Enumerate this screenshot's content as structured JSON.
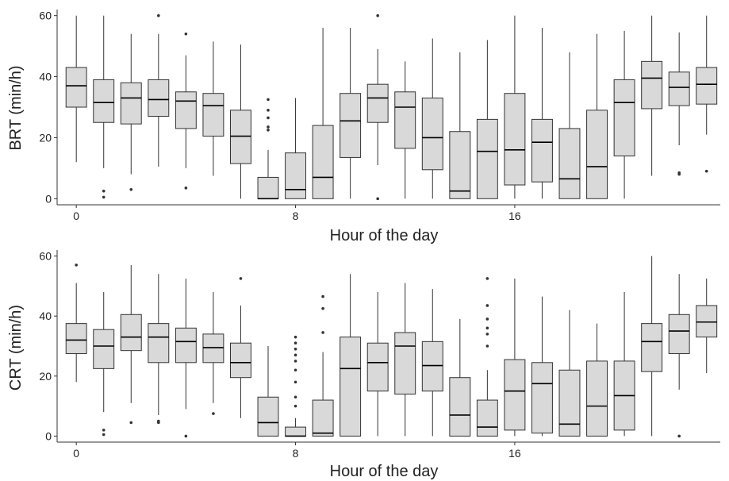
{
  "chart_data": [
    {
      "type": "boxplot",
      "xlabel": "Hour of the day",
      "ylabel": "BRT (min/h)",
      "xticks": [
        0,
        8,
        16
      ],
      "yticks": [
        0,
        20,
        40,
        60
      ],
      "ylim": [
        -2,
        62
      ],
      "xlim": [
        -0.7,
        23.5
      ],
      "grid": false,
      "boxes": [
        {
          "hour": 0,
          "min": 12,
          "q1": 30,
          "median": 37,
          "q3": 43,
          "max": 60,
          "outliers": []
        },
        {
          "hour": 1,
          "min": 10,
          "q1": 25,
          "median": 31.5,
          "q3": 39,
          "max": 60,
          "outliers": [
            0.5,
            2.5
          ]
        },
        {
          "hour": 2,
          "min": 8,
          "q1": 24.5,
          "median": 33,
          "q3": 38,
          "max": 54,
          "outliers": [
            3
          ]
        },
        {
          "hour": 3,
          "min": 10.5,
          "q1": 27,
          "median": 32.5,
          "q3": 39,
          "max": 54,
          "outliers": [
            60
          ]
        },
        {
          "hour": 4,
          "min": 10,
          "q1": 23,
          "median": 32,
          "q3": 35,
          "max": 47,
          "outliers": [
            3.5,
            54
          ]
        },
        {
          "hour": 5,
          "min": 7.5,
          "q1": 20.5,
          "median": 30.5,
          "q3": 34.5,
          "max": 51.5,
          "outliers": []
        },
        {
          "hour": 6,
          "min": 0,
          "q1": 11.5,
          "median": 20.5,
          "q3": 29,
          "max": 50.5,
          "outliers": []
        },
        {
          "hour": 7,
          "min": 0,
          "q1": 0,
          "median": 0,
          "q3": 7,
          "max": 16,
          "outliers": [
            22.5,
            23.5,
            26.5,
            29,
            32.5
          ]
        },
        {
          "hour": 8,
          "min": 0,
          "q1": 0,
          "median": 3,
          "q3": 15,
          "max": 33,
          "outliers": []
        },
        {
          "hour": 9,
          "min": 0,
          "q1": 0,
          "median": 7,
          "q3": 24,
          "max": 56,
          "outliers": []
        },
        {
          "hour": 10,
          "min": 0,
          "q1": 13.5,
          "median": 25.5,
          "q3": 34.5,
          "max": 56,
          "outliers": []
        },
        {
          "hour": 11,
          "min": 11,
          "q1": 25,
          "median": 33,
          "q3": 37.5,
          "max": 49,
          "outliers": [
            0,
            60
          ]
        },
        {
          "hour": 12,
          "min": 0,
          "q1": 16.5,
          "median": 30,
          "q3": 35,
          "max": 45,
          "outliers": []
        },
        {
          "hour": 13,
          "min": 0,
          "q1": 9.5,
          "median": 20,
          "q3": 33,
          "max": 52.5,
          "outliers": []
        },
        {
          "hour": 14,
          "min": 0,
          "q1": 0,
          "median": 2.5,
          "q3": 22,
          "max": 48,
          "outliers": []
        },
        {
          "hour": 15,
          "min": 0,
          "q1": 0,
          "median": 15.5,
          "q3": 26,
          "max": 52,
          "outliers": []
        },
        {
          "hour": 16,
          "min": 0,
          "q1": 4.5,
          "median": 16,
          "q3": 34.5,
          "max": 60,
          "outliers": []
        },
        {
          "hour": 17,
          "min": 0,
          "q1": 5.5,
          "median": 18.5,
          "q3": 26,
          "max": 56,
          "outliers": []
        },
        {
          "hour": 18,
          "min": 0,
          "q1": 0,
          "median": 6.5,
          "q3": 23,
          "max": 48,
          "outliers": []
        },
        {
          "hour": 19,
          "min": 0,
          "q1": 0,
          "median": 10.5,
          "q3": 29,
          "max": 54,
          "outliers": []
        },
        {
          "hour": 20,
          "min": 0,
          "q1": 14,
          "median": 31.5,
          "q3": 39,
          "max": 55,
          "outliers": []
        },
        {
          "hour": 21,
          "min": 7.5,
          "q1": 29.5,
          "median": 39.5,
          "q3": 45,
          "max": 60,
          "outliers": []
        },
        {
          "hour": 22,
          "min": 17.5,
          "q1": 30.5,
          "median": 36.5,
          "q3": 41.5,
          "max": 54.5,
          "outliers": [
            8,
            8.5
          ]
        },
        {
          "hour": 23,
          "min": 21,
          "q1": 31,
          "median": 37.5,
          "q3": 43,
          "max": 60,
          "outliers": [
            9
          ]
        }
      ]
    },
    {
      "type": "boxplot",
      "xlabel": "Hour of the day",
      "ylabel": "CRT (min/h)",
      "xticks": [
        0,
        8,
        16
      ],
      "yticks": [
        0,
        20,
        40,
        60
      ],
      "ylim": [
        -2,
        62
      ],
      "xlim": [
        -0.7,
        23.5
      ],
      "grid": false,
      "boxes": [
        {
          "hour": 0,
          "min": 18,
          "q1": 27.5,
          "median": 32,
          "q3": 37.5,
          "max": 51,
          "outliers": [
            57
          ]
        },
        {
          "hour": 1,
          "min": 8,
          "q1": 22.5,
          "median": 30,
          "q3": 35.5,
          "max": 48,
          "outliers": [
            0.5,
            2
          ]
        },
        {
          "hour": 2,
          "min": 11,
          "q1": 28.5,
          "median": 33,
          "q3": 40.5,
          "max": 57,
          "outliers": [
            4.5
          ]
        },
        {
          "hour": 3,
          "min": 7,
          "q1": 24.5,
          "median": 33,
          "q3": 37.5,
          "max": 54,
          "outliers": [
            4.5,
            5
          ]
        },
        {
          "hour": 4,
          "min": 9,
          "q1": 24.5,
          "median": 31.5,
          "q3": 36,
          "max": 52.5,
          "outliers": [
            0
          ]
        },
        {
          "hour": 5,
          "min": 11,
          "q1": 24.5,
          "median": 29.5,
          "q3": 34,
          "max": 48,
          "outliers": [
            7.5
          ]
        },
        {
          "hour": 6,
          "min": 6,
          "q1": 19.5,
          "median": 24.5,
          "q3": 31,
          "max": 43.5,
          "outliers": [
            52.5
          ]
        },
        {
          "hour": 7,
          "min": 0,
          "q1": 0,
          "median": 4.5,
          "q3": 13,
          "max": 30,
          "outliers": []
        },
        {
          "hour": 8,
          "min": 0,
          "q1": 0,
          "median": 0,
          "q3": 3,
          "max": 6,
          "outliers": [
            10,
            13,
            18,
            22,
            25,
            27,
            29,
            31,
            33
          ]
        },
        {
          "hour": 9,
          "min": 0,
          "q1": 0,
          "median": 1,
          "q3": 12,
          "max": 28,
          "outliers": [
            34.5,
            42.5,
            46.5
          ]
        },
        {
          "hour": 10,
          "min": 0,
          "q1": 0,
          "median": 22.5,
          "q3": 33,
          "max": 54,
          "outliers": []
        },
        {
          "hour": 11,
          "min": 0,
          "q1": 15,
          "median": 24.5,
          "q3": 31,
          "max": 48,
          "outliers": []
        },
        {
          "hour": 12,
          "min": 0,
          "q1": 14,
          "median": 30,
          "q3": 34.5,
          "max": 51,
          "outliers": []
        },
        {
          "hour": 13,
          "min": 0,
          "q1": 15,
          "median": 23.5,
          "q3": 31.5,
          "max": 49,
          "outliers": []
        },
        {
          "hour": 14,
          "min": 0,
          "q1": 0,
          "median": 7,
          "q3": 19.5,
          "max": 39,
          "outliers": []
        },
        {
          "hour": 15,
          "min": 0,
          "q1": 0,
          "median": 3,
          "q3": 12,
          "max": 22,
          "outliers": [
            30,
            34,
            36,
            39,
            43.5,
            52.5
          ]
        },
        {
          "hour": 16,
          "min": 0,
          "q1": 2,
          "median": 15,
          "q3": 25.5,
          "max": 52.5,
          "outliers": []
        },
        {
          "hour": 17,
          "min": 0,
          "q1": 1,
          "median": 17.5,
          "q3": 24.5,
          "max": 46.5,
          "outliers": []
        },
        {
          "hour": 18,
          "min": 0,
          "q1": 0,
          "median": 4,
          "q3": 22,
          "max": 42,
          "outliers": []
        },
        {
          "hour": 19,
          "min": 0,
          "q1": 0,
          "median": 10,
          "q3": 25,
          "max": 37.5,
          "outliers": []
        },
        {
          "hour": 20,
          "min": 0,
          "q1": 2,
          "median": 13.5,
          "q3": 25,
          "max": 48,
          "outliers": []
        },
        {
          "hour": 21,
          "min": 0,
          "q1": 21.5,
          "median": 31.5,
          "q3": 37.5,
          "max": 60,
          "outliers": []
        },
        {
          "hour": 22,
          "min": 15.5,
          "q1": 27.5,
          "median": 35,
          "q3": 40.5,
          "max": 54,
          "outliers": [
            0
          ]
        },
        {
          "hour": 23,
          "min": 21,
          "q1": 33,
          "median": 38,
          "q3": 43.5,
          "max": 52.5,
          "outliers": []
        }
      ]
    }
  ]
}
